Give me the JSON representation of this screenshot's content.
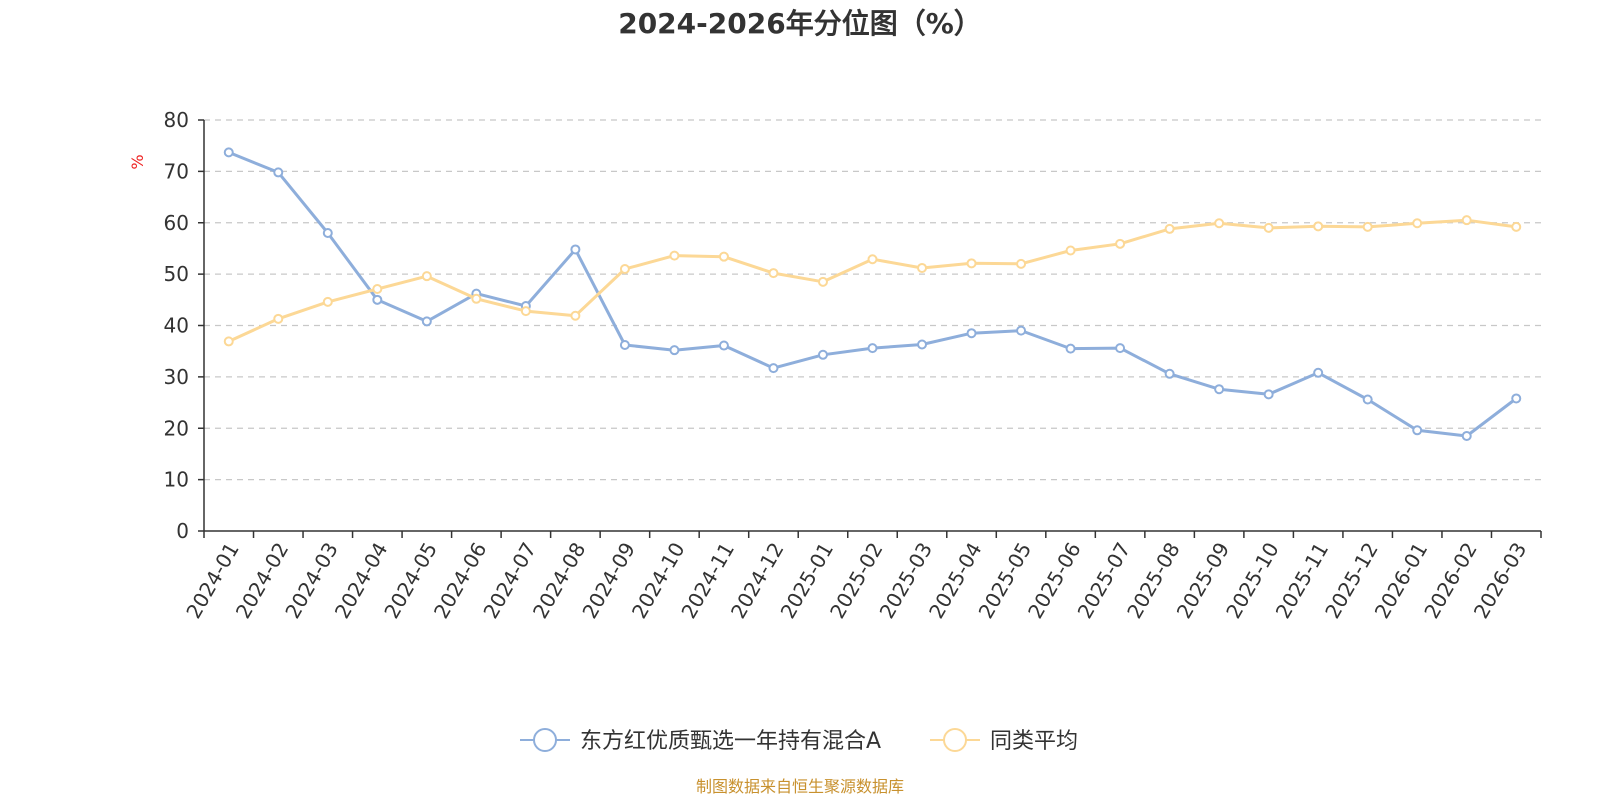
{
  "chart_data": {
    "type": "line",
    "title": "2024-2026年分位图（%）",
    "ylabel": "%",
    "xlabel": "",
    "ylim": [
      0,
      80
    ],
    "yticks": [
      0,
      10,
      20,
      30,
      40,
      50,
      60,
      70,
      80
    ],
    "grid": true,
    "legend_position": "bottom",
    "categories": [
      "2024-01",
      "2024-02",
      "2024-03",
      "2024-04",
      "2024-05",
      "2024-06",
      "2024-07",
      "2024-08",
      "2024-09",
      "2024-10",
      "2024-11",
      "2024-12",
      "2025-01",
      "2025-02",
      "2025-03",
      "2025-04",
      "2025-05",
      "2025-06",
      "2025-07",
      "2025-08",
      "2025-09",
      "2025-10",
      "2025-11",
      "2025-12",
      "2026-01",
      "2026-02",
      "2026-03"
    ],
    "series": [
      {
        "name": "东方红优质甄选一年持有混合A",
        "color": "#8eaedb",
        "values": [
          73.7,
          69.8,
          58.0,
          45.0,
          40.8,
          46.2,
          43.8,
          54.8,
          36.2,
          35.2,
          36.1,
          31.7,
          34.3,
          35.6,
          36.3,
          38.5,
          39.0,
          35.5,
          35.6,
          30.6,
          27.6,
          26.6,
          30.8,
          25.6,
          19.6,
          18.5,
          25.8
        ]
      },
      {
        "name": "同类平均",
        "color": "#fcd896",
        "values": [
          36.9,
          41.3,
          44.6,
          47.1,
          49.6,
          45.2,
          42.8,
          41.9,
          51.0,
          53.6,
          53.4,
          50.2,
          48.5,
          52.9,
          51.2,
          52.1,
          52.0,
          54.6,
          55.9,
          58.8,
          59.9,
          59.0,
          59.3,
          59.2,
          59.9,
          60.5,
          59.2
        ]
      }
    ],
    "source": "制图数据来自恒生聚源数据库",
    "unit_color": "#ee2222",
    "source_color": "#c8912e"
  }
}
